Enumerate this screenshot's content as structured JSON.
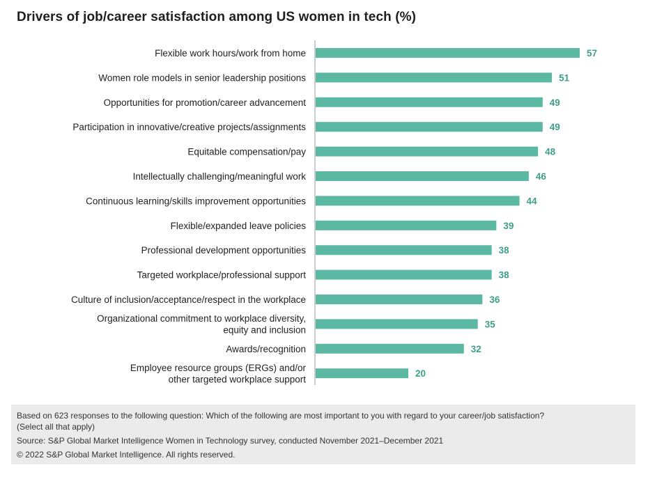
{
  "title": "Drivers of job/career satisfaction among US women in tech (%)",
  "chart_data": {
    "type": "bar",
    "orientation": "horizontal",
    "title": "Drivers of job/career satisfaction among US women in tech (%)",
    "categories": [
      [
        "Flexible work hours/work from home"
      ],
      [
        "Women role models in senior leadership positions"
      ],
      [
        "Opportunities for promotion/career advancement"
      ],
      [
        "Participation in innovative/creative projects/assignments"
      ],
      [
        "Equitable compensation/pay"
      ],
      [
        "Intellectually challenging/meaningful work"
      ],
      [
        "Continuous learning/skills improvement opportunities"
      ],
      [
        "Flexible/expanded leave policies"
      ],
      [
        "Professional development opportunities"
      ],
      [
        "Targeted workplace/professional support"
      ],
      [
        "Culture of inclusion/acceptance/respect in the workplace"
      ],
      [
        "Organizational commitment to workplace diversity,",
        "equity and inclusion"
      ],
      [
        "Awards/recognition"
      ],
      [
        "Employee resource groups (ERGs) and/or",
        "other targeted workplace support"
      ]
    ],
    "values": [
      57,
      51,
      49,
      49,
      48,
      46,
      44,
      39,
      38,
      38,
      36,
      35,
      32,
      20
    ],
    "xlim": [
      0,
      57
    ],
    "bar_color": "#5bb8a2",
    "value_label_color": "#3f9e89"
  },
  "footnote": {
    "question": "Based on 623 responses to the following question: Which of the following are most important to you with regard to your career/job satisfaction?",
    "question_cont": "(Select all that apply)",
    "source": "Source: S&P Global Market Intelligence Women in Technology survey, conducted November 2021–December 2021",
    "copyright": "© 2022 S&P Global Market Intelligence. All rights reserved."
  }
}
